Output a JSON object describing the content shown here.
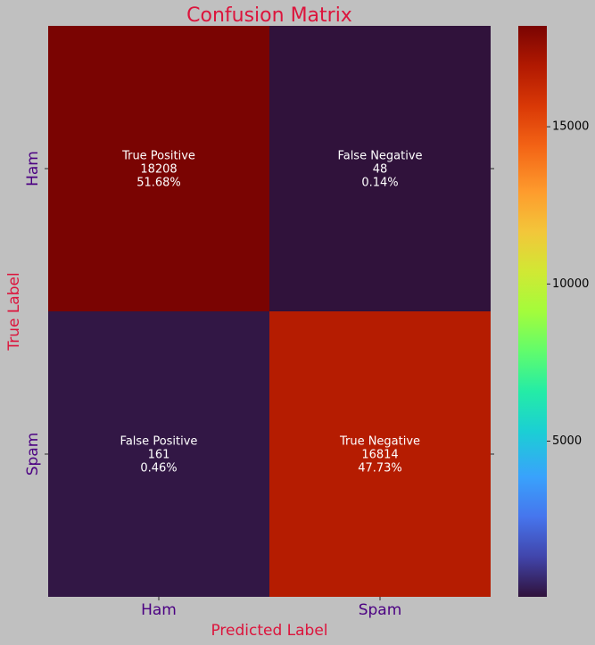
{
  "chart_data": {
    "type": "heatmap",
    "title": "Confusion Matrix",
    "xlabel": "Predicted Label",
    "ylabel": "True Label",
    "x_categories": [
      "Ham",
      "Spam"
    ],
    "y_categories": [
      "Ham",
      "Spam"
    ],
    "cells": [
      {
        "row": 0,
        "col": 0,
        "name": "True Positive",
        "value": 18208,
        "percent": "51.68%"
      },
      {
        "row": 0,
        "col": 1,
        "name": "False Negative",
        "value": 48,
        "percent": "0.14%"
      },
      {
        "row": 1,
        "col": 0,
        "name": "False Positive",
        "value": 161,
        "percent": "0.46%"
      },
      {
        "row": 1,
        "col": 1,
        "name": "True Negative",
        "value": 16814,
        "percent": "47.73%"
      }
    ],
    "colorbar": {
      "min": 48,
      "max": 18208,
      "ticks": [
        5000,
        10000,
        15000
      ],
      "colormap": "turbo"
    },
    "grid": false
  },
  "colors": {
    "background": "#c0c0c0",
    "title": "#dc143c",
    "axis_label": "#dc143c",
    "tick_label": "#4b0082",
    "cell_text": "#ffffff",
    "colorbar_tick_text": "#000000"
  }
}
